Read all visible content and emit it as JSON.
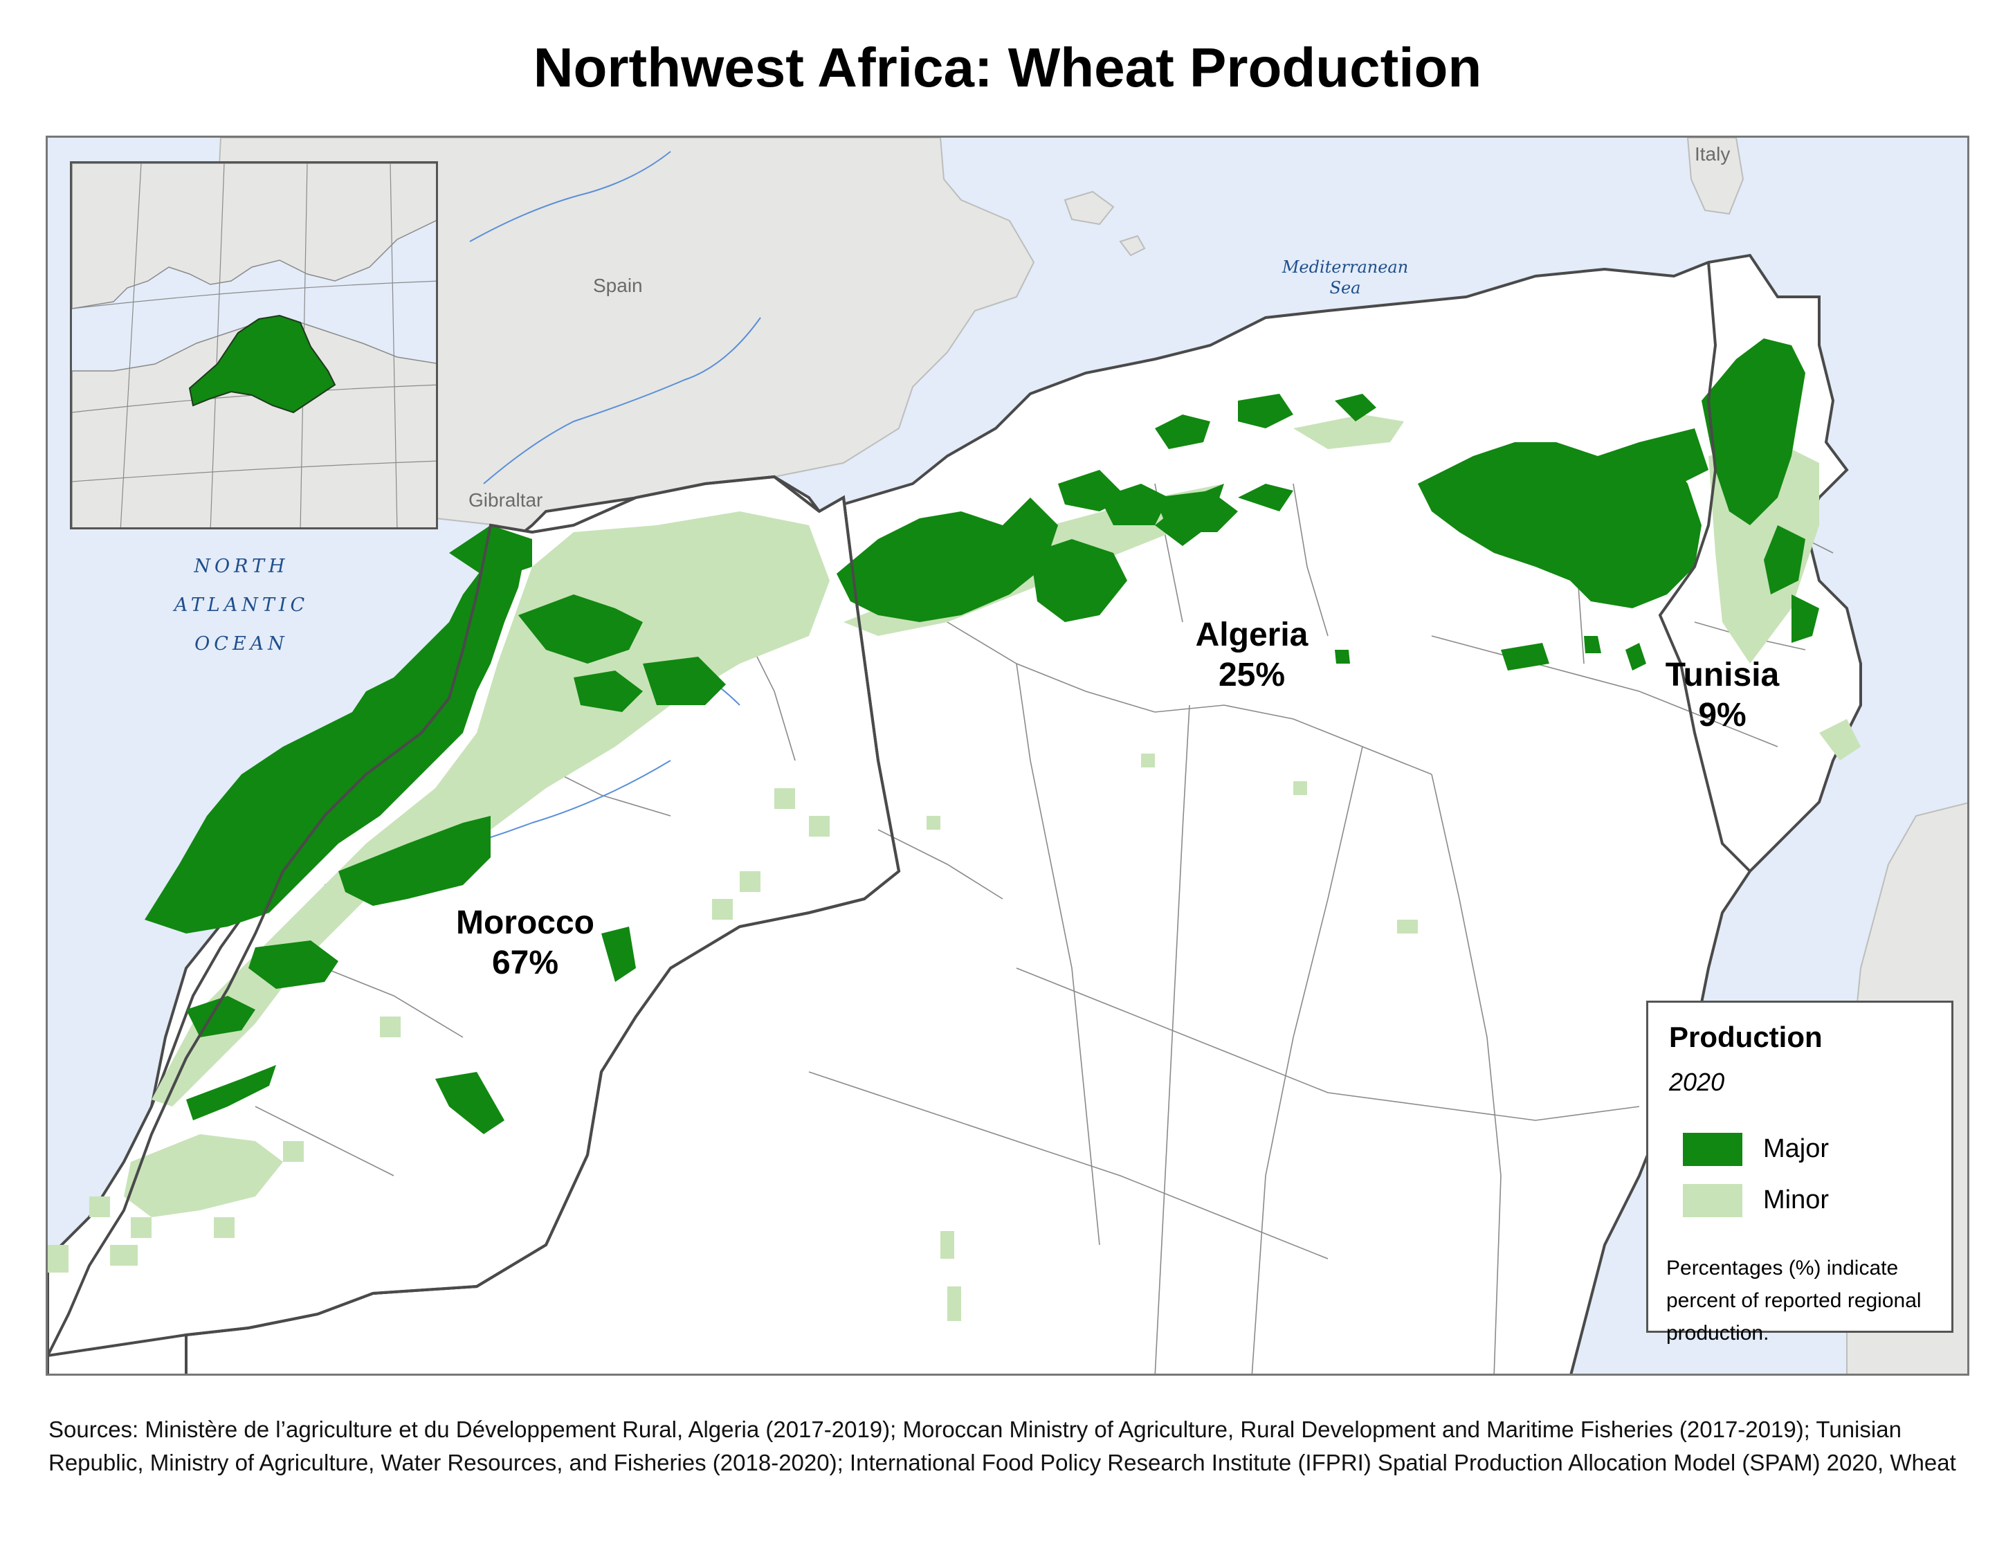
{
  "title": "Northwest Africa: Wheat Production",
  "map": {
    "colors": {
      "water": "#e3ecf8",
      "land_other": "#e6e6e4",
      "land_region": "#ffffff",
      "major": "#118811",
      "minor": "#c8e3b8",
      "border": "#4a4a4a",
      "river": "#5a8fd8"
    },
    "labels": {
      "spain": "Spain",
      "italy": "Italy",
      "gibraltar": "Gibraltar",
      "sea_line1": "Mediterranean",
      "sea_line2": "Sea",
      "ocean_line1": "NORTH",
      "ocean_line2": "ATLANTIC",
      "ocean_line3": "OCEAN"
    },
    "countries": [
      {
        "name": "Morocco",
        "share": "67%"
      },
      {
        "name": "Algeria",
        "share": "25%"
      },
      {
        "name": "Tunisia",
        "share": "9%"
      }
    ]
  },
  "legend": {
    "title": "Production",
    "year": "2020",
    "items": [
      {
        "label": "Major",
        "color": "#118811"
      },
      {
        "label": "Minor",
        "color": "#c8e3b8"
      }
    ],
    "note": "Percentages (%) indicate percent of reported regional production."
  },
  "sources": "Sources: Ministère de l’agriculture et du Développement Rural, Algeria (2017-2019);  Moroccan Ministry of Agriculture, Rural Development and Maritime Fisheries (2017-2019); Tunisian Republic, Ministry of Agriculture, Water Resources, and Fisheries (2018-2020); International Food Policy Research Institute (IFPRI) Spatial Production Allocation Model (SPAM) 2020, Wheat"
}
